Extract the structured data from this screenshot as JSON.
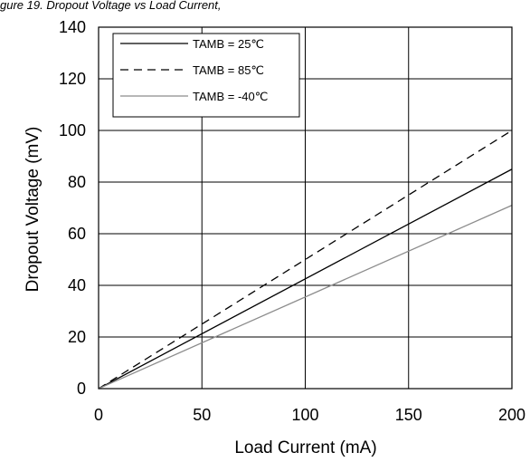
{
  "caption": "gure 19. Dropout Voltage vs Load Current,",
  "chart_data": {
    "type": "line",
    "title": "",
    "xlabel": "Load Current (mA)",
    "ylabel": "Dropout Voltage (mV)",
    "xlim": [
      0,
      200
    ],
    "ylim": [
      0,
      140
    ],
    "x_ticks": [
      0,
      50,
      100,
      150,
      200
    ],
    "y_ticks": [
      0,
      20,
      40,
      60,
      80,
      100,
      120,
      140
    ],
    "grid": true,
    "legend_position": "top-left",
    "series": [
      {
        "name": "TAMB = 25℃",
        "style": "solid",
        "color": "#000000",
        "x": [
          0,
          200
        ],
        "y": [
          0,
          85
        ]
      },
      {
        "name": "TAMB = 85℃",
        "style": "dashed",
        "color": "#000000",
        "x": [
          0,
          200
        ],
        "y": [
          0,
          100
        ]
      },
      {
        "name": "TAMB = -40℃",
        "style": "solid",
        "color": "#8c8c8c",
        "x": [
          0,
          200
        ],
        "y": [
          0,
          71
        ]
      }
    ]
  }
}
